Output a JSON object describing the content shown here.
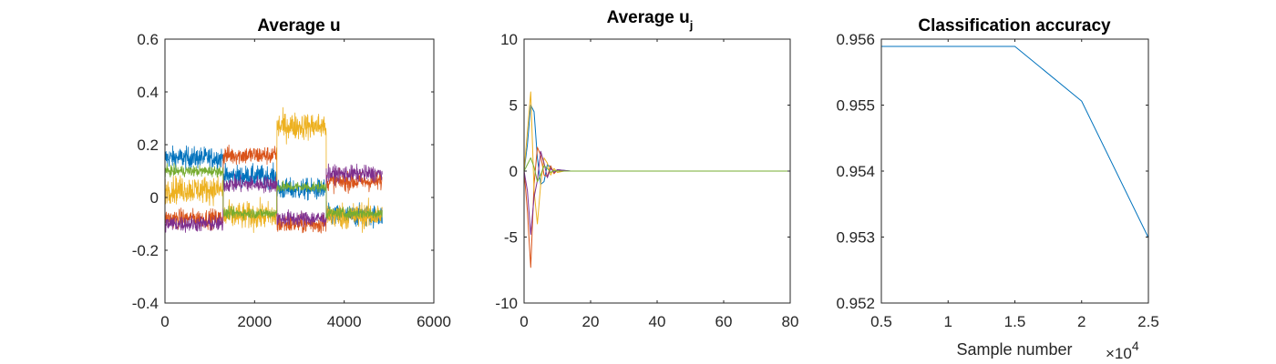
{
  "chart_data": [
    {
      "type": "line",
      "title": "Average u",
      "xlabel": "",
      "ylabel": "",
      "xlim": [
        0,
        6000
      ],
      "ylim": [
        -0.4,
        0.6
      ],
      "xticks": [
        "0",
        "2000",
        "4000",
        "6000"
      ],
      "yticks": [
        "-0.4",
        "-0.2",
        "0",
        "0.2",
        "0.4",
        "0.6"
      ],
      "n_samples": 4850,
      "segments": [
        0,
        1300,
        2500,
        3600,
        4850
      ],
      "series": [
        {
          "color": "#0072BD",
          "segment_means": [
            0.15,
            0.08,
            0.03,
            -0.07
          ],
          "noise": 0.04
        },
        {
          "color": "#D95319",
          "segment_means": [
            -0.08,
            0.16,
            -0.1,
            0.06
          ],
          "noise": 0.035
        },
        {
          "color": "#EDB120",
          "segment_means": [
            0.03,
            -0.07,
            0.27,
            -0.07
          ],
          "noise": 0.05
        },
        {
          "color": "#7E2F8E",
          "segment_means": [
            -0.1,
            0.05,
            -0.08,
            0.09
          ],
          "noise": 0.03
        },
        {
          "color": "#77AC30",
          "segment_means": [
            0.1,
            -0.06,
            0.04,
            -0.06
          ],
          "noise": 0.02
        }
      ]
    },
    {
      "type": "line",
      "title": "Average u",
      "title_subscript": "j",
      "xlabel": "",
      "ylabel": "",
      "xlim": [
        0,
        80
      ],
      "ylim": [
        -10,
        10
      ],
      "xticks": [
        "0",
        "20",
        "40",
        "60",
        "80"
      ],
      "yticks": [
        "-10",
        "-5",
        "0",
        "5",
        "10"
      ],
      "series": [
        {
          "color": "#0072BD",
          "x": [
            0,
            1,
            2,
            3,
            4,
            5,
            6,
            7,
            8,
            9,
            10,
            12,
            14,
            16,
            18,
            20,
            25,
            80
          ],
          "y": [
            0,
            2.0,
            5.0,
            4.5,
            1.0,
            -1.0,
            -0.8,
            0.5,
            0.3,
            -0.1,
            0.1,
            0.05,
            0,
            0,
            0,
            0,
            0,
            0
          ]
        },
        {
          "color": "#D95319",
          "x": [
            0,
            1,
            2,
            3,
            4,
            5,
            6,
            7,
            8,
            9,
            10,
            12,
            14,
            16,
            18,
            20,
            25,
            80
          ],
          "y": [
            0,
            -3.0,
            -7.3,
            -1.0,
            1.8,
            1.2,
            -0.3,
            -0.4,
            0.4,
            -0.2,
            0.1,
            0,
            0,
            0,
            0,
            0,
            0,
            0
          ]
        },
        {
          "color": "#EDB120",
          "x": [
            0,
            1,
            2,
            3,
            4,
            5,
            6,
            7,
            8,
            9,
            10,
            12,
            14,
            16,
            18,
            20,
            25,
            80
          ],
          "y": [
            0,
            3.0,
            6.0,
            -1.5,
            -4.0,
            -1.0,
            1.0,
            0.6,
            -0.3,
            0.2,
            -0.1,
            0,
            0,
            0,
            0,
            0,
            0,
            0
          ]
        },
        {
          "color": "#7E2F8E",
          "x": [
            0,
            1,
            2,
            3,
            4,
            5,
            6,
            7,
            8,
            9,
            10,
            12,
            14,
            16,
            18,
            20,
            25,
            80
          ],
          "y": [
            0,
            -1.5,
            -4.8,
            -2.0,
            -0.7,
            1.5,
            0.6,
            -0.5,
            0.2,
            -0.1,
            0.1,
            0.05,
            0,
            0,
            0,
            0,
            0,
            0
          ]
        },
        {
          "color": "#77AC30",
          "x": [
            0,
            1,
            2,
            3,
            4,
            5,
            6,
            7,
            8,
            9,
            10,
            12,
            14,
            16,
            18,
            20,
            25,
            80
          ],
          "y": [
            0,
            0.5,
            1.0,
            0.3,
            -0.8,
            -0.3,
            0.4,
            0.2,
            -0.1,
            0.05,
            0,
            0,
            0,
            0,
            0,
            0,
            0,
            0
          ]
        }
      ]
    },
    {
      "type": "line",
      "title": "Classification accuracy",
      "xlabel": "Sample number",
      "x_multiplier": "×10",
      "x_multiplier_exp": "4",
      "ylabel": "",
      "xlim": [
        0.5,
        2.5
      ],
      "ylim": [
        0.952,
        0.956
      ],
      "xticks": [
        "0.5",
        "1",
        "1.5",
        "2",
        "2.5"
      ],
      "yticks": [
        "0.952",
        "0.953",
        "0.954",
        "0.955",
        "0.956"
      ],
      "series": [
        {
          "color": "#0072BD",
          "x": [
            0.5,
            1.0,
            1.5,
            2.0,
            2.5
          ],
          "y": [
            0.95589,
            0.95589,
            0.95589,
            0.95506,
            0.95299
          ]
        }
      ]
    }
  ]
}
